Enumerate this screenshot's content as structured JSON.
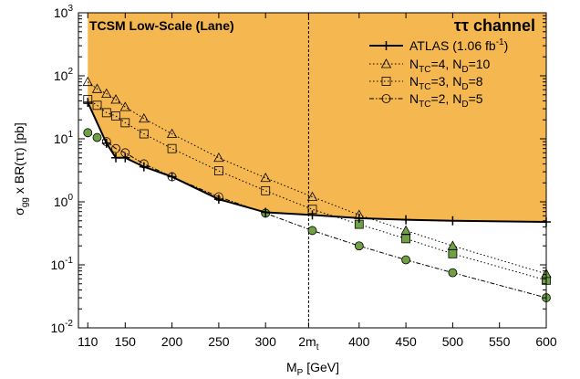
{
  "chart_data": {
    "type": "line",
    "ylog": true,
    "xlim": [
      100,
      600
    ],
    "ylim": [
      0.01,
      1000
    ],
    "xlabel": {
      "main": "M",
      "sub": "P",
      "rest": " [GeV]"
    },
    "ylabel": {
      "sigma": "σ",
      "sub": "gg",
      "rest": " x BR(ττ) [pb]"
    },
    "xticks": [
      {
        "value": 110,
        "label": "110"
      },
      {
        "value": 150,
        "label": "150"
      },
      {
        "value": 200,
        "label": "200"
      },
      {
        "value": 250,
        "label": "250"
      },
      {
        "value": 300,
        "label": "300"
      },
      {
        "value": 346,
        "label": "2m",
        "sub": "t"
      },
      {
        "value": 400,
        "label": "400"
      },
      {
        "value": 450,
        "label": "450"
      },
      {
        "value": 500,
        "label": "500"
      },
      {
        "value": 550,
        "label": "550"
      },
      {
        "value": 600,
        "label": "600"
      }
    ],
    "yticks": [
      {
        "value": 0.01,
        "base": "10",
        "exp": "-2"
      },
      {
        "value": 0.1,
        "base": "10",
        "exp": "-1"
      },
      {
        "value": 1,
        "base": "10",
        "exp": "0"
      },
      {
        "value": 10,
        "base": "10",
        "exp": "1"
      },
      {
        "value": 100,
        "base": "10",
        "exp": "2"
      },
      {
        "value": 1000,
        "base": "10",
        "exp": "3"
      }
    ],
    "annotations": {
      "top_left": "TCSM Low-Scale (Lane)",
      "top_right": "ττ channel",
      "vline_x": 346
    },
    "excluded_region_color": "#F5B74F",
    "markers_below_limit_color": "#6FA044",
    "series": [
      {
        "key": "atlas",
        "name": "ATLAS (1.06 fb",
        "name_sup": "-1",
        "name_end": ")",
        "marker": "plus",
        "line": "solid",
        "width": 2,
        "x": [
          110,
          130,
          140,
          150,
          170,
          200,
          250,
          300,
          350,
          400,
          450,
          500,
          600
        ],
        "y": [
          38,
          8.5,
          5.0,
          5.0,
          3.6,
          2.5,
          1.1,
          0.68,
          0.62,
          0.55,
          0.52,
          0.5,
          0.48
        ]
      },
      {
        "key": "ntc4",
        "name_parts": [
          "N",
          "TC",
          "=4, N",
          "D",
          "=10"
        ],
        "marker": "triangle",
        "line": "dotted",
        "width": 1,
        "x": [
          110,
          120,
          130,
          140,
          150,
          170,
          200,
          250,
          300,
          350,
          400,
          450,
          500,
          600
        ],
        "y": [
          80,
          62,
          52,
          42,
          32,
          21,
          12,
          5.0,
          2.4,
          1.2,
          0.62,
          0.35,
          0.2,
          0.072
        ]
      },
      {
        "key": "ntc3",
        "name_parts": [
          "N",
          "TC",
          "=3, N",
          "D",
          "=8"
        ],
        "marker": "square",
        "line": "dotted",
        "width": 1,
        "x": [
          110,
          120,
          130,
          140,
          150,
          170,
          200,
          250,
          300,
          350,
          400,
          450,
          500,
          600
        ],
        "y": [
          42,
          34,
          26,
          23,
          18,
          12,
          7.0,
          3.1,
          1.5,
          0.76,
          0.44,
          0.26,
          0.15,
          0.057
        ]
      },
      {
        "key": "ntc2",
        "name_parts": [
          "N",
          "TC",
          "=2, N",
          "D",
          "=5"
        ],
        "marker": "circle",
        "line": "dashdot",
        "width": 1,
        "x": [
          110,
          120,
          130,
          140,
          150,
          170,
          200,
          250,
          300,
          350,
          400,
          450,
          500,
          600
        ],
        "y": [
          12.5,
          10.5,
          9.0,
          7.0,
          6.0,
          4.0,
          2.5,
          1.2,
          0.66,
          0.35,
          0.2,
          0.12,
          0.075,
          0.03
        ]
      }
    ]
  }
}
